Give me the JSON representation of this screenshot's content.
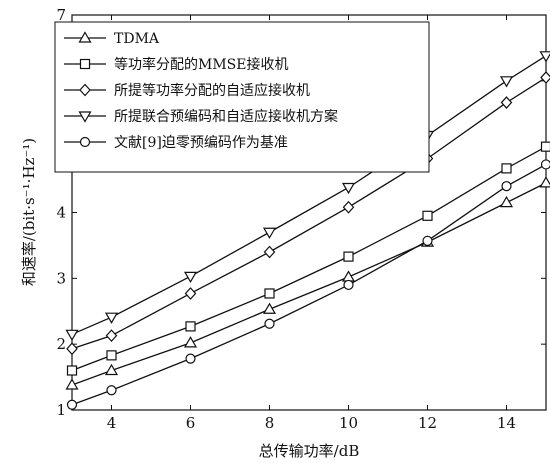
{
  "chart_data": {
    "type": "line",
    "xlabel": "总传输功率/dB",
    "ylabel": "和速率/(bit·s⁻¹·Hz⁻¹)",
    "xlim": [
      3,
      15
    ],
    "ylim": [
      1,
      7
    ],
    "x": [
      3,
      4,
      6,
      8,
      10,
      12,
      14,
      15
    ],
    "x_ticks": [
      "4",
      "6",
      "8",
      "10",
      "12",
      "14"
    ],
    "y_ticks": [
      "1",
      "2",
      "3",
      "4",
      "5",
      "6",
      "7"
    ],
    "grid": false,
    "legend_position": "top-left",
    "series": [
      {
        "name": "TDMA",
        "marker": "triangle-up",
        "values": [
          1.38,
          1.6,
          2.02,
          2.53,
          3.02,
          3.55,
          4.15,
          4.45
        ]
      },
      {
        "name": "等功率分配的MMSE接收机",
        "marker": "square",
        "values": [
          1.6,
          1.83,
          2.27,
          2.77,
          3.33,
          3.95,
          4.67,
          5.0
        ]
      },
      {
        "name": "所提等功率分配的自适应接收机",
        "marker": "diamond",
        "values": [
          1.93,
          2.13,
          2.77,
          3.4,
          4.08,
          4.82,
          5.67,
          6.05
        ]
      },
      {
        "name": "所提联合预编码和自适应接收机方案",
        "marker": "triangle-down",
        "values": [
          2.15,
          2.41,
          3.03,
          3.7,
          4.38,
          5.17,
          6.0,
          6.38
        ]
      },
      {
        "name": "文献[9]迫零预编码作为基准",
        "marker": "circle",
        "values": [
          1.08,
          1.3,
          1.78,
          2.31,
          2.9,
          3.57,
          4.4,
          4.73
        ]
      }
    ]
  }
}
